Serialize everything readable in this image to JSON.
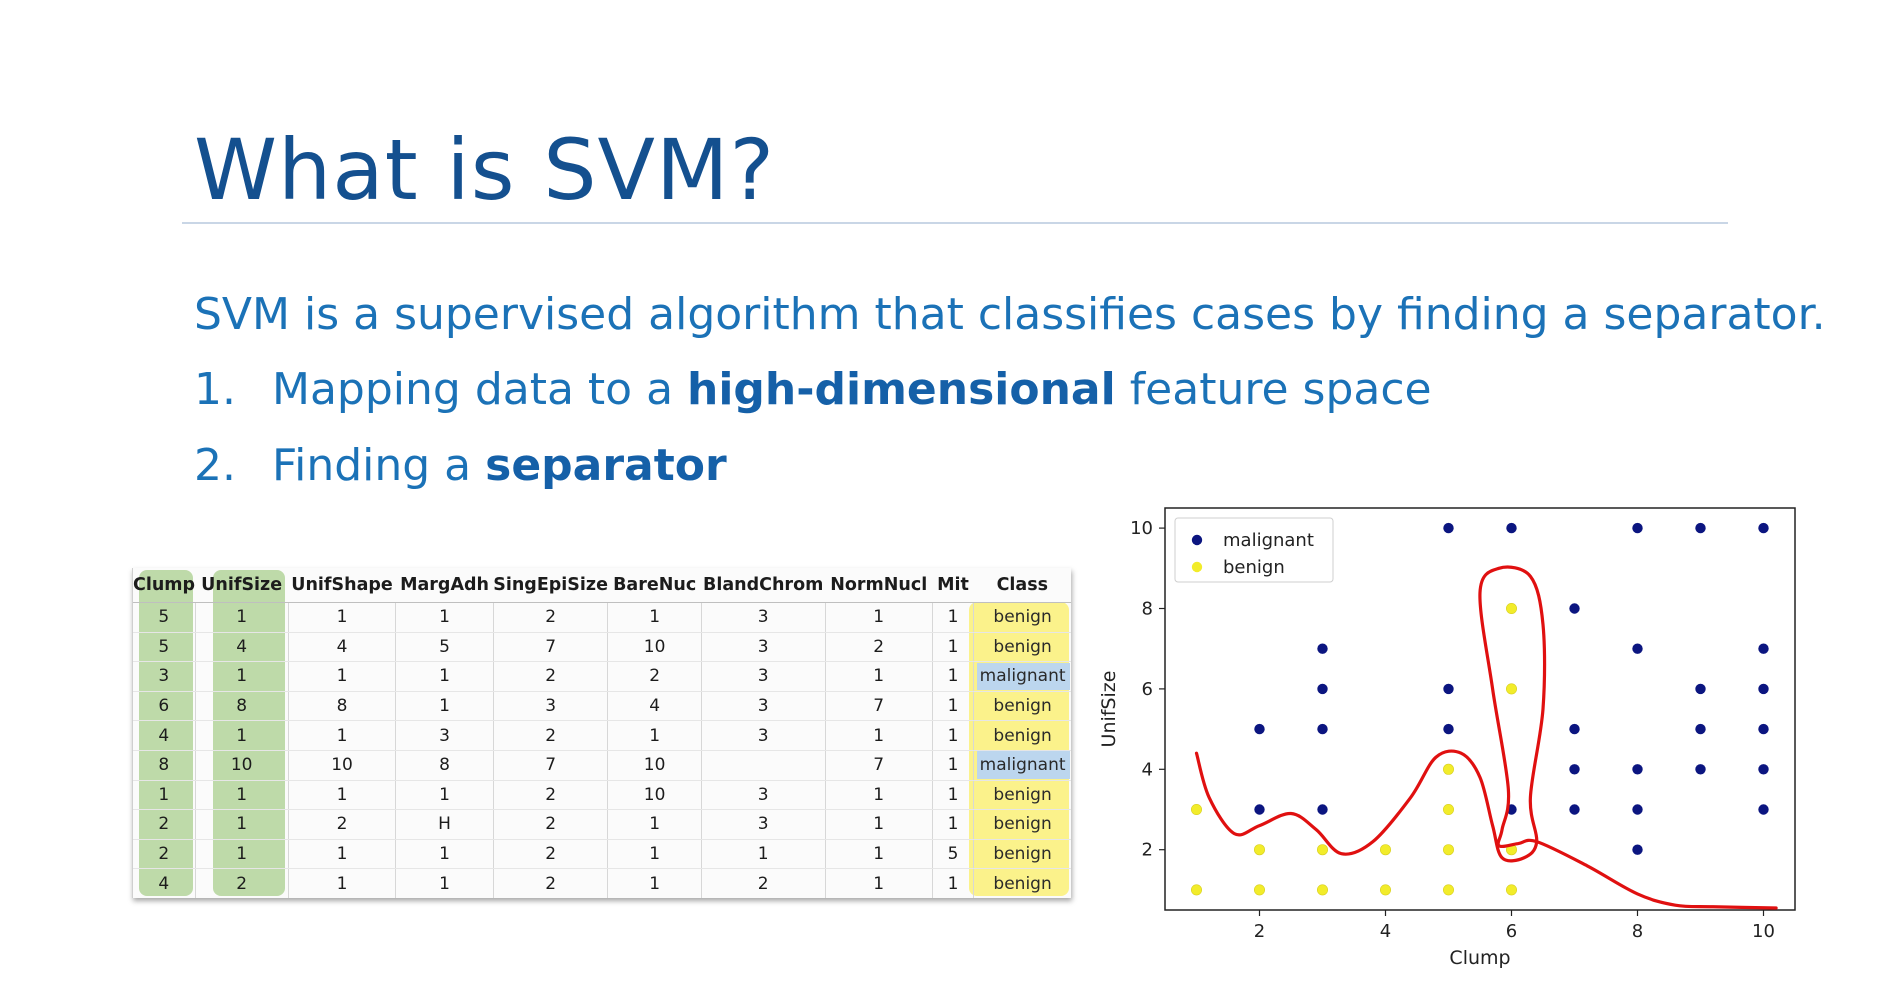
{
  "slide": {
    "title": "What is SVM?",
    "intro": "SVM is a supervised algorithm that classifies cases by finding a separator.",
    "steps": [
      {
        "num": "1.",
        "pre": "Mapping data to a ",
        "bold": "high-dimensional",
        "post": " feature space"
      },
      {
        "num": "2.",
        "pre": "Finding a ",
        "bold": "separator",
        "post": ""
      }
    ]
  },
  "table": {
    "columns": [
      "Clump",
      "UnifSize",
      "UnifShape",
      "MargAdh",
      "SingEpiSize",
      "BareNuc",
      "BlandChrom",
      "NormNucl",
      "Mit",
      "Class"
    ],
    "rows": [
      [
        "5",
        "1",
        "1",
        "1",
        "2",
        "1",
        "3",
        "1",
        "1",
        "benign"
      ],
      [
        "5",
        "4",
        "4",
        "5",
        "7",
        "10",
        "3",
        "2",
        "1",
        "benign"
      ],
      [
        "3",
        "1",
        "1",
        "1",
        "2",
        "2",
        "3",
        "1",
        "1",
        "malignant"
      ],
      [
        "6",
        "8",
        "8",
        "1",
        "3",
        "4",
        "3",
        "7",
        "1",
        "benign"
      ],
      [
        "4",
        "1",
        "1",
        "3",
        "2",
        "1",
        "3",
        "1",
        "1",
        "benign"
      ],
      [
        "8",
        "10",
        "10",
        "8",
        "7",
        "10",
        "",
        "7",
        "1",
        "malignant"
      ],
      [
        "1",
        "1",
        "1",
        "1",
        "2",
        "10",
        "3",
        "1",
        "1",
        "benign"
      ],
      [
        "2",
        "1",
        "2",
        "H",
        "2",
        "1",
        "3",
        "1",
        "1",
        "benign"
      ],
      [
        "2",
        "1",
        "1",
        "1",
        "2",
        "1",
        "1",
        "1",
        "5",
        "benign"
      ],
      [
        "4",
        "2",
        "1",
        "1",
        "2",
        "1",
        "2",
        "1",
        "1",
        "benign"
      ]
    ],
    "colors": {
      "green": "#a9cf8e",
      "yellow": "#fbf28b",
      "blue": "#bcd6ee"
    }
  },
  "chart_data": {
    "type": "scatter",
    "xlabel": "Clump",
    "ylabel": "UnifSize",
    "xlim": [
      0.5,
      10.5
    ],
    "ylim": [
      0.5,
      10.5
    ],
    "xticks": [
      2,
      4,
      6,
      8,
      10
    ],
    "yticks": [
      2,
      4,
      6,
      8,
      10
    ],
    "grid": false,
    "legend_position": "top-left",
    "series": [
      {
        "name": "malignant",
        "color": "#0b1580",
        "points": [
          [
            5,
            10
          ],
          [
            6,
            10
          ],
          [
            8,
            10
          ],
          [
            9,
            10
          ],
          [
            10,
            10
          ],
          [
            7,
            8
          ],
          [
            3,
            7
          ],
          [
            8,
            7
          ],
          [
            10,
            7
          ],
          [
            3,
            6
          ],
          [
            5,
            6
          ],
          [
            9,
            6
          ],
          [
            10,
            6
          ],
          [
            2,
            5
          ],
          [
            3,
            5
          ],
          [
            5,
            5
          ],
          [
            7,
            5
          ],
          [
            9,
            5
          ],
          [
            10,
            5
          ],
          [
            7,
            4
          ],
          [
            8,
            4
          ],
          [
            9,
            4
          ],
          [
            10,
            4
          ],
          [
            2,
            3
          ],
          [
            3,
            3
          ],
          [
            6,
            3
          ],
          [
            7,
            3
          ],
          [
            8,
            3
          ],
          [
            10,
            3
          ],
          [
            8,
            2
          ]
        ]
      },
      {
        "name": "benign",
        "color": "#f2ec2a",
        "points": [
          [
            6,
            8
          ],
          [
            6,
            6
          ],
          [
            5,
            4
          ],
          [
            1,
            3
          ],
          [
            5,
            3
          ],
          [
            2,
            2
          ],
          [
            3,
            2
          ],
          [
            4,
            2
          ],
          [
            5,
            2
          ],
          [
            6,
            2
          ],
          [
            1,
            1
          ],
          [
            2,
            1
          ],
          [
            3,
            1
          ],
          [
            4,
            1
          ],
          [
            5,
            1
          ],
          [
            6,
            1
          ]
        ]
      }
    ],
    "boundary": {
      "color": "#e01010",
      "points": [
        [
          1,
          4.4
        ],
        [
          1.2,
          3.3
        ],
        [
          1.6,
          2.4
        ],
        [
          2,
          2.6
        ],
        [
          2.5,
          2.9
        ],
        [
          2.9,
          2.5
        ],
        [
          3.3,
          1.9
        ],
        [
          3.8,
          2.2
        ],
        [
          4.4,
          3.3
        ],
        [
          4.8,
          4.3
        ],
        [
          5.2,
          4.4
        ],
        [
          5.5,
          3.8
        ],
        [
          5.7,
          2.6
        ],
        [
          5.85,
          1.8
        ],
        [
          6.2,
          1.8
        ],
        [
          6.4,
          2.2
        ],
        [
          6.3,
          3.3
        ],
        [
          6.5,
          5.5
        ],
        [
          6.5,
          7.6
        ],
        [
          6.3,
          8.8
        ],
        [
          5.8,
          9.0
        ],
        [
          5.5,
          8.4
        ],
        [
          5.7,
          6.0
        ],
        [
          5.95,
          3.5
        ],
        [
          5.85,
          2.5
        ],
        [
          5.8,
          2.1
        ],
        [
          6.1,
          2.15
        ],
        [
          6.4,
          2.2
        ],
        [
          7.2,
          1.6
        ],
        [
          8,
          0.9
        ],
        [
          8.6,
          0.62
        ],
        [
          9.2,
          0.58
        ],
        [
          10.2,
          0.55
        ]
      ]
    }
  }
}
